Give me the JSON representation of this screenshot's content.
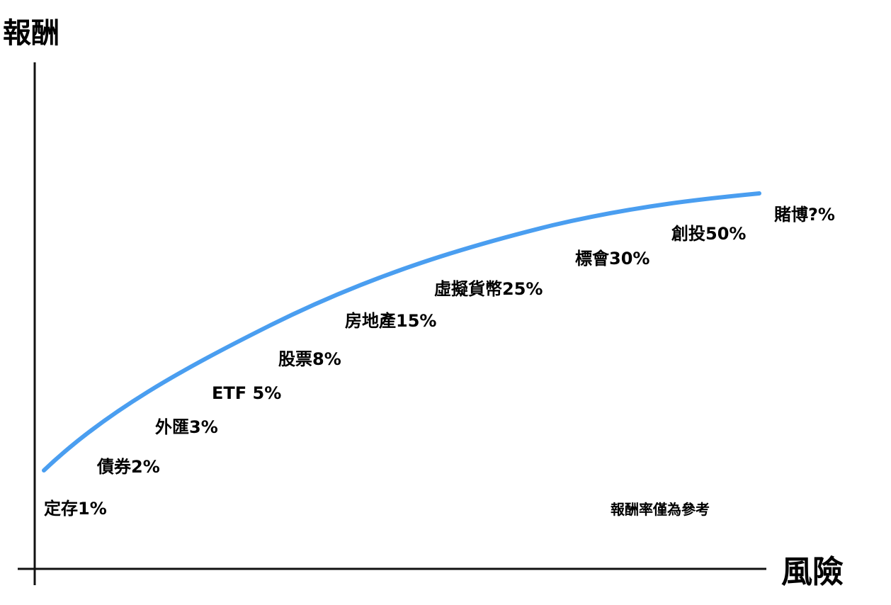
{
  "chart_data": {
    "type": "line",
    "xlabel": "風險",
    "ylabel": "報酬",
    "note": "報酬率僅為參考",
    "grid": false,
    "curve_color": "#4a9ef0",
    "axis_color": "#111111",
    "points": [
      {
        "label": "定存1%"
      },
      {
        "label": "債券2%"
      },
      {
        "label": "外匯3%"
      },
      {
        "label": "ETF 5%"
      },
      {
        "label": "股票8%"
      },
      {
        "label": "房地產15%"
      },
      {
        "label": "虛擬貨幣25%"
      },
      {
        "label": "標會30%"
      },
      {
        "label": "創投50%"
      },
      {
        "label": "賭博?%"
      }
    ]
  }
}
